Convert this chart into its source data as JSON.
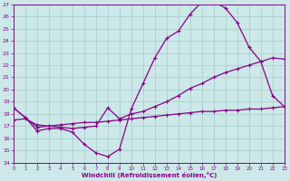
{
  "xlabel": "Windchill (Refroidissement éolien,°C)",
  "xlim": [
    0,
    23
  ],
  "ylim": [
    14,
    27
  ],
  "yticks": [
    14,
    15,
    16,
    17,
    18,
    19,
    20,
    21,
    22,
    23,
    24,
    25,
    26,
    27
  ],
  "xticks": [
    0,
    1,
    2,
    3,
    4,
    5,
    6,
    7,
    8,
    9,
    10,
    11,
    12,
    13,
    14,
    15,
    16,
    17,
    18,
    19,
    20,
    21,
    22,
    23
  ],
  "background_color": "#cce8e8",
  "grid_color": "#aacfcf",
  "line_color": "#880088",
  "curve1_x": [
    0,
    1,
    2,
    3,
    4,
    5,
    6,
    7,
    8,
    9,
    10,
    11,
    12,
    13,
    14,
    15,
    16,
    17,
    18,
    19,
    20,
    21,
    22,
    23
  ],
  "curve1_y": [
    18.5,
    17.7,
    16.6,
    16.8,
    16.8,
    16.5,
    15.5,
    14.8,
    14.5,
    15.1,
    18.4,
    20.5,
    22.6,
    24.2,
    24.8,
    26.2,
    27.2,
    27.2,
    26.7,
    25.5,
    23.5,
    22.3,
    19.5,
    18.6
  ],
  "curve2_x": [
    0,
    1,
    2,
    3,
    4,
    5,
    6,
    7,
    8,
    9,
    10,
    11,
    12,
    13,
    14,
    15,
    16,
    17,
    18,
    19,
    20,
    21,
    22,
    23
  ],
  "curve2_y": [
    18.5,
    17.7,
    16.9,
    17.0,
    17.1,
    17.2,
    17.3,
    17.3,
    17.4,
    17.5,
    17.6,
    17.7,
    17.8,
    17.9,
    18.0,
    18.1,
    18.2,
    18.2,
    18.3,
    18.3,
    18.4,
    18.4,
    18.5,
    18.6
  ],
  "curve3_x": [
    0,
    1,
    2,
    3,
    4,
    5,
    6,
    7,
    8,
    9,
    10,
    11,
    12,
    13,
    14,
    15,
    16,
    17,
    18,
    19,
    20,
    21,
    22,
    23
  ],
  "curve3_y": [
    17.5,
    17.6,
    17.1,
    17.0,
    16.9,
    16.8,
    16.9,
    17.0,
    18.5,
    17.6,
    18.0,
    18.2,
    18.6,
    19.0,
    19.5,
    20.1,
    20.5,
    21.0,
    21.4,
    21.7,
    22.0,
    22.3,
    22.6,
    22.5
  ]
}
